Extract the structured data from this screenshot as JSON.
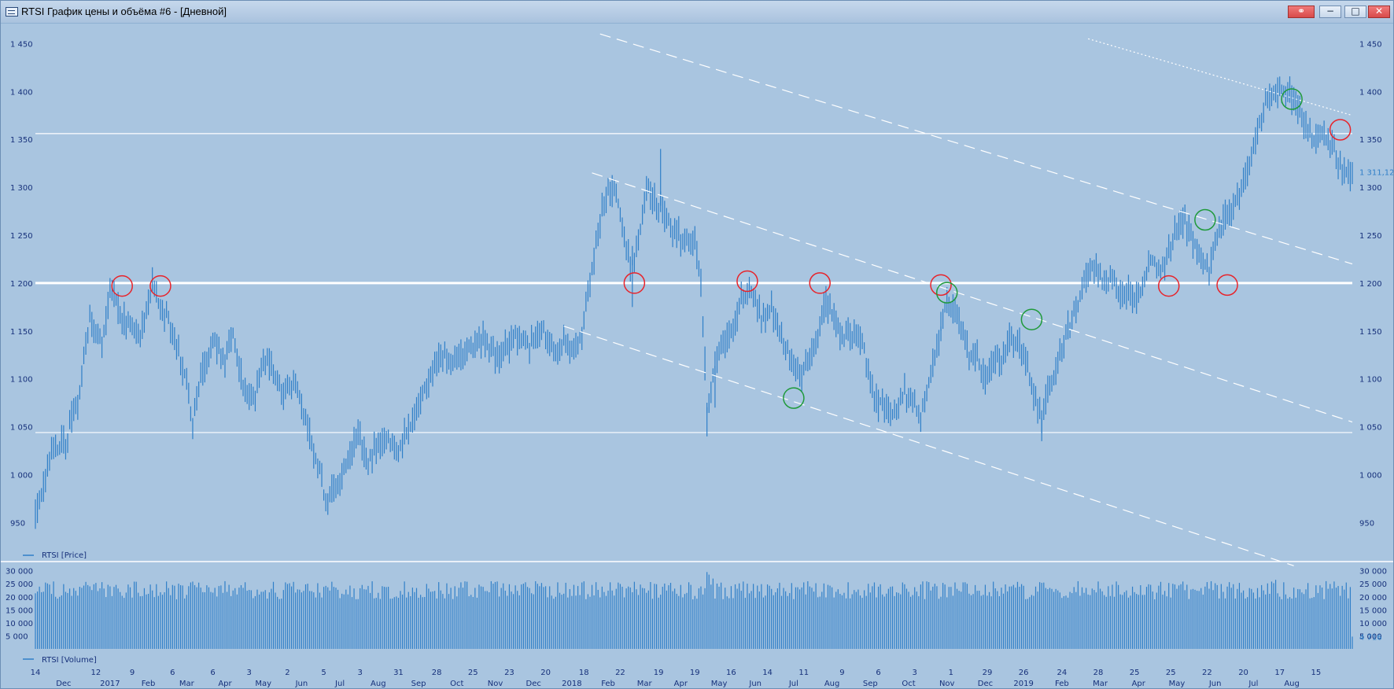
{
  "window": {
    "title": "RTSI График цены и объёма #6 - [Дневной]",
    "buttons": {
      "link": "⚭",
      "minimize": "−",
      "maximize": "□",
      "close": "✕"
    }
  },
  "colors": {
    "background": "#a9c5e0",
    "series": "#2f7fc8",
    "horizontal_levels": "#ffffff",
    "trend_lines": "#ffffff",
    "red_markers": "#e8232a",
    "green_markers": "#1f9a3a",
    "axis_text": "#16307a"
  },
  "chart_data": [
    {
      "type": "line",
      "name": "price-panel",
      "series": [
        {
          "name": "RTSI [Price]",
          "style": "OHLC bars"
        }
      ],
      "legend": "bottom-left",
      "ylim": [
        920,
        1470
      ],
      "yticks": [
        950,
        1000,
        1050,
        1100,
        1150,
        1200,
        1250,
        1300,
        1350,
        1400,
        1450
      ],
      "ytick_labels": [
        "950",
        "1 000",
        "1 050",
        "1 100",
        "1 150",
        "1 200",
        "1 250",
        "1 300",
        "1 350",
        "1 400",
        "1 450"
      ],
      "last_value_label": "1 311,12",
      "last_value": 1311.12,
      "x_index_range": [
        0,
        653
      ],
      "anchors": [
        [
          0,
          960
        ],
        [
          8,
          1020
        ],
        [
          15,
          1035
        ],
        [
          22,
          1085
        ],
        [
          27,
          1160
        ],
        [
          33,
          1135
        ],
        [
          37,
          1190
        ],
        [
          45,
          1160
        ],
        [
          52,
          1150
        ],
        [
          58,
          1195
        ],
        [
          65,
          1165
        ],
        [
          70,
          1140
        ],
        [
          75,
          1095
        ],
        [
          78,
          1055
        ],
        [
          82,
          1100
        ],
        [
          88,
          1140
        ],
        [
          94,
          1120
        ],
        [
          98,
          1150
        ],
        [
          103,
          1090
        ],
        [
          108,
          1080
        ],
        [
          113,
          1120
        ],
        [
          118,
          1110
        ],
        [
          123,
          1080
        ],
        [
          128,
          1100
        ],
        [
          132,
          1070
        ],
        [
          137,
          1035
        ],
        [
          141,
          1005
        ],
        [
          144,
          970
        ],
        [
          148,
          985
        ],
        [
          155,
          1010
        ],
        [
          160,
          1040
        ],
        [
          165,
          1015
        ],
        [
          170,
          1030
        ],
        [
          175,
          1040
        ],
        [
          180,
          1025
        ],
        [
          185,
          1045
        ],
        [
          190,
          1070
        ],
        [
          195,
          1100
        ],
        [
          200,
          1125
        ],
        [
          207,
          1120
        ],
        [
          215,
          1130
        ],
        [
          222,
          1145
        ],
        [
          228,
          1120
        ],
        [
          233,
          1130
        ],
        [
          238,
          1145
        ],
        [
          245,
          1135
        ],
        [
          252,
          1150
        ],
        [
          258,
          1125
        ],
        [
          263,
          1140
        ],
        [
          268,
          1130
        ],
        [
          271,
          1150
        ],
        [
          275,
          1200
        ],
        [
          279,
          1255
        ],
        [
          283,
          1290
        ],
        [
          287,
          1300
        ],
        [
          291,
          1260
        ],
        [
          295,
          1215
        ],
        [
          299,
          1245
        ],
        [
          303,
          1300
        ],
        [
          307,
          1285
        ],
        [
          312,
          1270
        ],
        [
          317,
          1250
        ],
        [
          323,
          1245
        ],
        [
          327,
          1240
        ],
        [
          330,
          1200
        ],
        [
          333,
          1070
        ],
        [
          337,
          1110
        ],
        [
          341,
          1140
        ],
        [
          345,
          1150
        ],
        [
          350,
          1185
        ],
        [
          355,
          1190
        ],
        [
          360,
          1165
        ],
        [
          365,
          1170
        ],
        [
          370,
          1140
        ],
        [
          375,
          1120
        ],
        [
          379,
          1100
        ],
        [
          383,
          1115
        ],
        [
          388,
          1145
        ],
        [
          392,
          1180
        ],
        [
          396,
          1165
        ],
        [
          400,
          1140
        ],
        [
          405,
          1150
        ],
        [
          410,
          1140
        ],
        [
          414,
          1095
        ],
        [
          418,
          1075
        ],
        [
          423,
          1065
        ],
        [
          427,
          1070
        ],
        [
          431,
          1085
        ],
        [
          435,
          1075
        ],
        [
          439,
          1060
        ],
        [
          443,
          1095
        ],
        [
          447,
          1130
        ],
        [
          451,
          1175
        ],
        [
          455,
          1175
        ],
        [
          459,
          1160
        ],
        [
          463,
          1120
        ],
        [
          467,
          1125
        ],
        [
          471,
          1095
        ],
        [
          475,
          1120
        ],
        [
          479,
          1115
        ],
        [
          483,
          1140
        ],
        [
          488,
          1135
        ],
        [
          492,
          1110
        ],
        [
          496,
          1075
        ],
        [
          499,
          1060
        ],
        [
          502,
          1085
        ],
        [
          506,
          1110
        ],
        [
          510,
          1140
        ],
        [
          514,
          1160
        ],
        [
          518,
          1185
        ],
        [
          522,
          1210
        ],
        [
          526,
          1220
        ],
        [
          530,
          1195
        ],
        [
          534,
          1205
        ],
        [
          538,
          1185
        ],
        [
          542,
          1190
        ],
        [
          546,
          1180
        ],
        [
          550,
          1205
        ],
        [
          554,
          1225
        ],
        [
          558,
          1215
        ],
        [
          562,
          1235
        ],
        [
          566,
          1255
        ],
        [
          570,
          1265
        ],
        [
          574,
          1240
        ],
        [
          578,
          1225
        ],
        [
          582,
          1215
        ],
        [
          586,
          1250
        ],
        [
          590,
          1270
        ],
        [
          594,
          1280
        ],
        [
          598,
          1295
        ],
        [
          602,
          1325
        ],
        [
          606,
          1360
        ],
        [
          610,
          1385
        ],
        [
          614,
          1398
        ],
        [
          618,
          1405
        ],
        [
          622,
          1400
        ],
        [
          626,
          1385
        ],
        [
          630,
          1360
        ],
        [
          634,
          1345
        ],
        [
          638,
          1355
        ],
        [
          641,
          1350
        ],
        [
          644,
          1340
        ],
        [
          647,
          1320
        ],
        [
          653,
          1311
        ]
      ],
      "horizontal_levels": [
        1356,
        1200,
        1044
      ],
      "trend_lines": [
        {
          "style": "dashed",
          "from": [
            280,
            1460
          ],
          "to": [
            653,
            1220
          ]
        },
        {
          "style": "dashed",
          "from": [
            276,
            1315
          ],
          "to": [
            653,
            1055
          ]
        },
        {
          "style": "dashed",
          "from": [
            262,
            1155
          ],
          "to": [
            624,
            905
          ]
        },
        {
          "style": "dotted",
          "from": [
            522,
            1455
          ],
          "to": [
            653,
            1375
          ]
        }
      ],
      "red_circles": [
        [
          43,
          1197
        ],
        [
          62,
          1197
        ],
        [
          297,
          1200
        ],
        [
          353,
          1202
        ],
        [
          389,
          1200
        ],
        [
          449,
          1198
        ],
        [
          562,
          1197
        ],
        [
          591,
          1198
        ],
        [
          647,
          1360
        ]
      ],
      "green_circles": [
        [
          376,
          1080
        ],
        [
          452,
          1190
        ],
        [
          494,
          1162
        ],
        [
          580,
          1266
        ],
        [
          623,
          1392
        ]
      ]
    },
    {
      "type": "bar",
      "name": "volume-panel",
      "series": [
        {
          "name": "RTSI [Volume]"
        }
      ],
      "legend": "bottom-left",
      "ylim": [
        0,
        32000
      ],
      "yticks": [
        5000,
        10000,
        15000,
        20000,
        25000,
        30000
      ],
      "ytick_labels": [
        "5 000",
        "10 000",
        "15 000",
        "20 000",
        "25 000",
        "30 000"
      ],
      "last_value_label": "4 716",
      "last_value": 4716,
      "typical_range": [
        19000,
        26000
      ],
      "spikes": [
        [
          333,
          29500
        ],
        [
          334,
          28500
        ],
        [
          336,
          27000
        ],
        [
          615,
          26500
        ],
        [
          640,
          26000
        ]
      ]
    }
  ],
  "time_axis": {
    "top_labels": [
      {
        "i": 0,
        "text": "14"
      },
      {
        "i": 30,
        "text": "12"
      },
      {
        "i": 48,
        "text": "9"
      },
      {
        "i": 68,
        "text": "6"
      },
      {
        "i": 88,
        "text": "6"
      },
      {
        "i": 106,
        "text": "3"
      },
      {
        "i": 125,
        "text": "2"
      },
      {
        "i": 143,
        "text": "5"
      },
      {
        "i": 161,
        "text": "3"
      },
      {
        "i": 180,
        "text": "31"
      },
      {
        "i": 199,
        "text": "28"
      },
      {
        "i": 217,
        "text": "25"
      },
      {
        "i": 235,
        "text": "23"
      },
      {
        "i": 253,
        "text": "20"
      },
      {
        "i": 272,
        "text": "18"
      },
      {
        "i": 290,
        "text": "22"
      },
      {
        "i": 309,
        "text": "19"
      },
      {
        "i": 327,
        "text": "19"
      },
      {
        "i": 345,
        "text": "16"
      },
      {
        "i": 363,
        "text": "14"
      },
      {
        "i": 381,
        "text": "11"
      },
      {
        "i": 400,
        "text": "9"
      },
      {
        "i": 418,
        "text": "6"
      },
      {
        "i": 436,
        "text": "3"
      },
      {
        "i": 454,
        "text": "1"
      },
      {
        "i": 472,
        "text": "29"
      },
      {
        "i": 490,
        "text": "26"
      },
      {
        "i": 509,
        "text": "24"
      },
      {
        "i": 527,
        "text": "28"
      },
      {
        "i": 545,
        "text": "25"
      },
      {
        "i": 563,
        "text": "25"
      },
      {
        "i": 581,
        "text": "22"
      },
      {
        "i": 599,
        "text": "20"
      },
      {
        "i": 617,
        "text": "17"
      },
      {
        "i": 635,
        "text": "15"
      }
    ],
    "bottom_labels": [
      {
        "i": 14,
        "text": "Dec"
      },
      {
        "i": 37,
        "text": "2017"
      },
      {
        "i": 56,
        "text": "Feb"
      },
      {
        "i": 75,
        "text": "Mar"
      },
      {
        "i": 94,
        "text": "Apr"
      },
      {
        "i": 113,
        "text": "May"
      },
      {
        "i": 132,
        "text": "Jun"
      },
      {
        "i": 151,
        "text": "Jul"
      },
      {
        "i": 170,
        "text": "Aug"
      },
      {
        "i": 190,
        "text": "Sep"
      },
      {
        "i": 209,
        "text": "Oct"
      },
      {
        "i": 228,
        "text": "Nov"
      },
      {
        "i": 247,
        "text": "Dec"
      },
      {
        "i": 266,
        "text": "2018"
      },
      {
        "i": 284,
        "text": "Feb"
      },
      {
        "i": 302,
        "text": "Mar"
      },
      {
        "i": 320,
        "text": "Apr"
      },
      {
        "i": 339,
        "text": "May"
      },
      {
        "i": 357,
        "text": "Jun"
      },
      {
        "i": 376,
        "text": "Jul"
      },
      {
        "i": 395,
        "text": "Aug"
      },
      {
        "i": 414,
        "text": "Sep"
      },
      {
        "i": 433,
        "text": "Oct"
      },
      {
        "i": 452,
        "text": "Nov"
      },
      {
        "i": 471,
        "text": "Dec"
      },
      {
        "i": 490,
        "text": "2019"
      },
      {
        "i": 509,
        "text": "Feb"
      },
      {
        "i": 528,
        "text": "Mar"
      },
      {
        "i": 547,
        "text": "Apr"
      },
      {
        "i": 566,
        "text": "May"
      },
      {
        "i": 585,
        "text": "Jun"
      },
      {
        "i": 604,
        "text": "Jul"
      },
      {
        "i": 623,
        "text": "Aug"
      }
    ]
  }
}
